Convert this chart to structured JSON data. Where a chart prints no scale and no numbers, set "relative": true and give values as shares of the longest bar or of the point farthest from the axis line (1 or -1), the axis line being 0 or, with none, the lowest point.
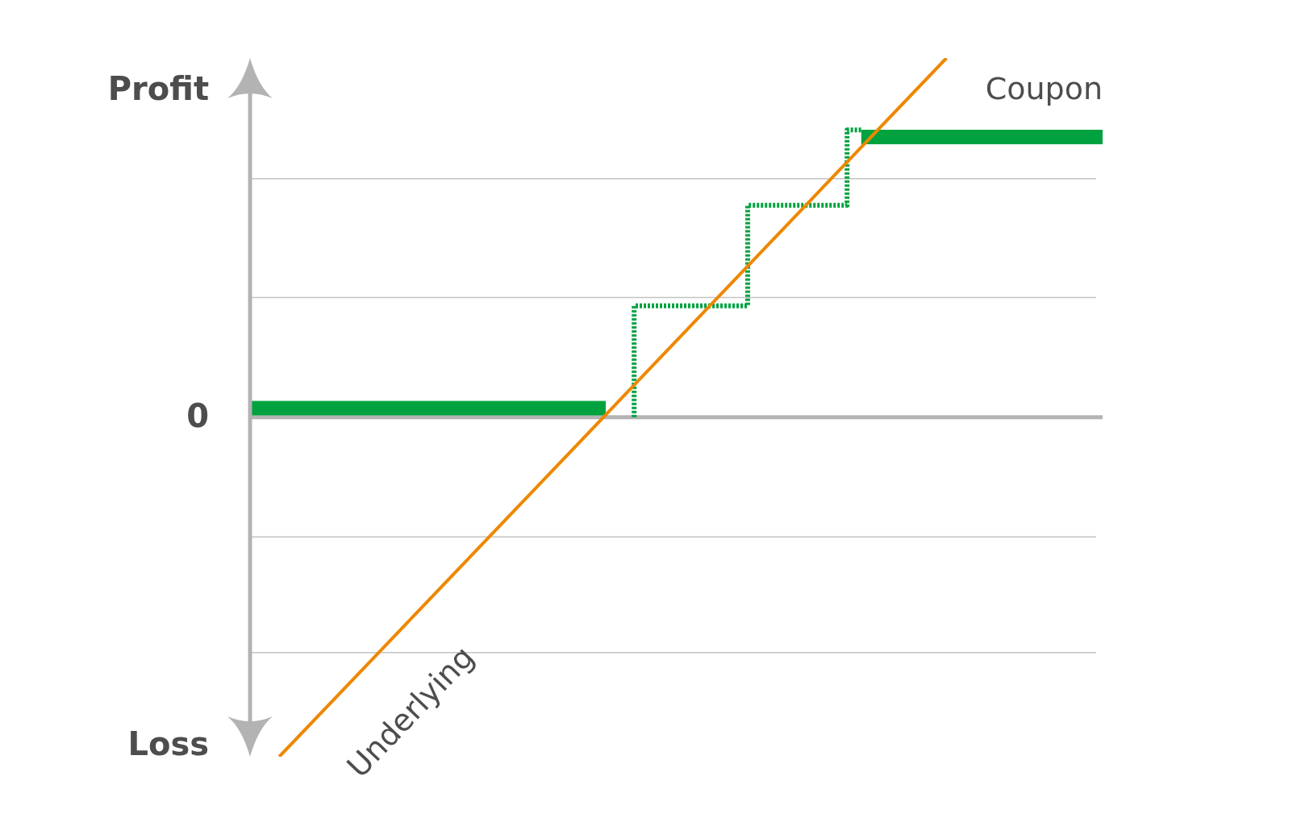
{
  "chart_data": {
    "type": "line",
    "relative": true,
    "legend": false,
    "annotations": [
      "Profit",
      "Loss"
    ],
    "categories": [
      null,
      null,
      null,
      null,
      null,
      null,
      null,
      null,
      null,
      null,
      null,
      null,
      null,
      null,
      null,
      null,
      null,
      null,
      null,
      null,
      null,
      null,
      null,
      null,
      null,
      null,
      null,
      null,
      null,
      null,
      null,
      null,
      null,
      null,
      null,
      null,
      null,
      null,
      null,
      null,
      null,
      null,
      null,
      null,
      null,
      null,
      null,
      null,
      null,
      null,
      null,
      null,
      null,
      null,
      null,
      null,
      null,
      null,
      null,
      null,
      null
    ],
    "ref_lines": [
      {
        "axis": "y",
        "value": 0,
        "label": "0",
        "color": "#b3b3b3"
      },
      {
        "axis": "y",
        "value": 0.333,
        "color": "#c4c4c4"
      },
      {
        "axis": "y",
        "value": 0.664,
        "color": "#c4c4c4"
      },
      {
        "axis": "y",
        "value": -0.333,
        "color": "#c4c4c4"
      },
      {
        "axis": "y",
        "value": -0.655,
        "color": "#c4c4c4"
      }
    ],
    "series": [
      {
        "name": "Underlying",
        "type": "line",
        "color": "#ee8700",
        "values": [
          null,
          null,
          -0.945,
          null,
          null,
          null,
          null,
          null,
          null,
          null,
          null,
          null,
          null,
          null,
          null,
          null,
          null,
          null,
          null,
          null,
          null,
          null,
          null,
          null,
          null,
          null,
          null,
          null,
          null,
          null,
          null,
          null,
          null,
          null,
          null,
          null,
          null,
          null,
          null,
          null,
          null,
          null,
          null,
          null,
          null,
          null,
          null,
          null,
          null,
          1,
          null,
          null,
          null,
          null,
          null,
          null,
          null,
          null,
          null,
          null,
          null
        ]
      },
      {
        "name": "Coupon",
        "type": "step",
        "color": "#00a23f",
        "values": [
          0.025,
          0.025,
          0.025,
          0.025,
          0.025,
          0.025,
          0.025,
          0.025,
          0.025,
          0.025,
          0.025,
          0.025,
          0.025,
          0.025,
          0.025,
          0.025,
          0.025,
          0.025,
          0.025,
          0.025,
          0.025,
          0.025,
          0.025,
          0.025,
          0.025,
          0.025,
          null,
          null,
          null,
          null,
          null,
          null,
          null,
          null,
          null,
          null,
          null,
          null,
          null,
          null,
          null,
          null,
          null,
          0.78,
          0.78,
          0.78,
          0.78,
          0.78,
          0.78,
          0.78,
          0.78,
          0.78,
          0.78,
          0.78,
          0.78,
          0.78,
          0.78,
          0.78,
          0.78,
          0.78,
          0.78
        ]
      },
      {
        "type": "step",
        "line_style": "dotted",
        "color": "#00a23f",
        "values": [
          null,
          null,
          null,
          null,
          null,
          null,
          null,
          null,
          null,
          null,
          null,
          null,
          null,
          null,
          null,
          null,
          null,
          null,
          null,
          null,
          null,
          null,
          null,
          null,
          null,
          null,
          null,
          0,
          null,
          null,
          null,
          null,
          null,
          null,
          null,
          0.31,
          null,
          null,
          null,
          null,
          null,
          null,
          0.59,
          0.8,
          null,
          null,
          null,
          null,
          null,
          null,
          null,
          null,
          null,
          null,
          null,
          null,
          null,
          null,
          null,
          null,
          null
        ]
      }
    ]
  }
}
